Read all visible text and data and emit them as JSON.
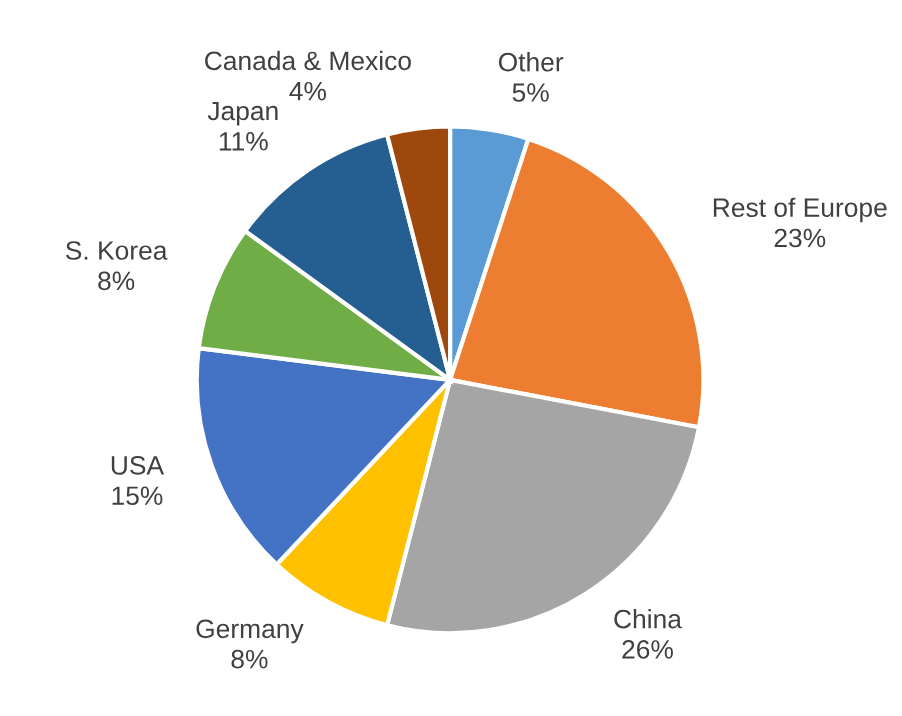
{
  "chart_data": {
    "type": "pie",
    "categories": [
      "Other",
      "Rest of Europe",
      "China",
      "Germany",
      "USA",
      "S. Korea",
      "Japan",
      "Canada & Mexico"
    ],
    "values": [
      5,
      23,
      26,
      8,
      15,
      8,
      11,
      4
    ],
    "colors": [
      "#5b9bd5",
      "#ed7d31",
      "#a5a5a5",
      "#ffc000",
      "#4472c4",
      "#70ad47",
      "#255e91",
      "#9e480e"
    ],
    "value_labels": [
      "5%",
      "23%",
      "26%",
      "8%",
      "15%",
      "8%",
      "11%",
      "4%"
    ],
    "legend": false
  }
}
